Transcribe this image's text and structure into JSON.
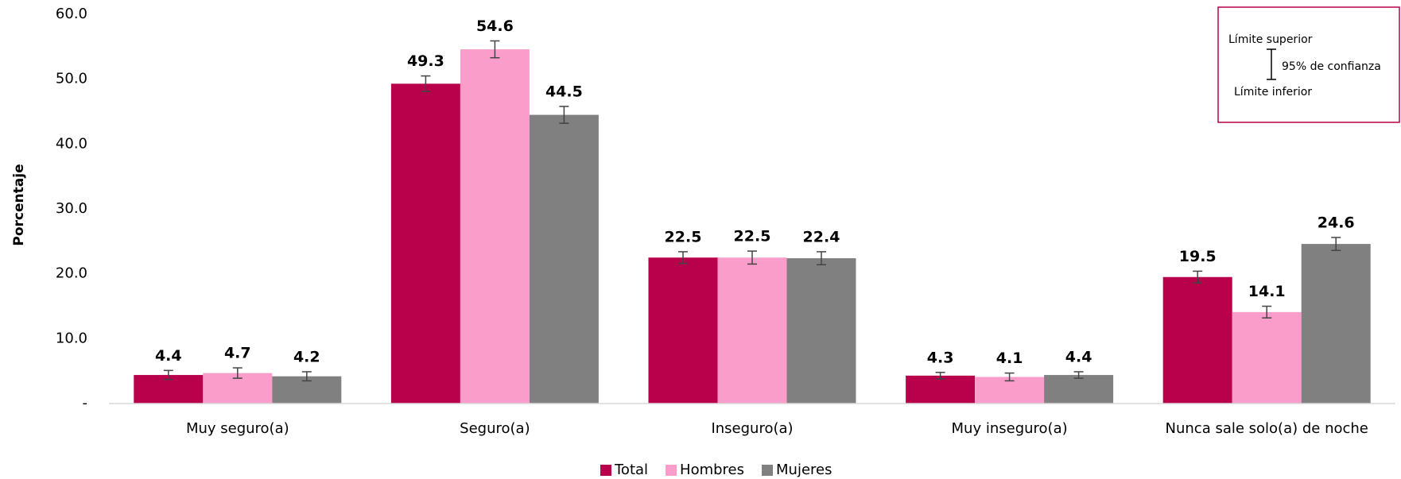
{
  "chart_data": {
    "type": "bar",
    "y_label": "Porcentaje",
    "categories": [
      "Muy seguro(a)",
      "Seguro(a)",
      "Inseguro(a)",
      "Muy inseguro(a)",
      "Nunca sale solo(a) de noche"
    ],
    "series": [
      {
        "name": "Total",
        "color": "#b8004b",
        "values": [
          4.4,
          49.3,
          22.5,
          4.3,
          19.5
        ],
        "errors": [
          0.7,
          1.2,
          0.9,
          0.5,
          0.9
        ]
      },
      {
        "name": "Hombres",
        "color": "#fa9dcb",
        "values": [
          4.7,
          54.6,
          22.5,
          4.1,
          14.1
        ],
        "errors": [
          0.8,
          1.3,
          1.0,
          0.6,
          0.9
        ]
      },
      {
        "name": "Mujeres",
        "color": "#808080",
        "values": [
          4.2,
          44.5,
          22.4,
          4.4,
          24.6
        ],
        "errors": [
          0.7,
          1.3,
          1.0,
          0.5,
          1.0
        ]
      }
    ],
    "ylim": [
      0,
      60
    ],
    "yticks": [
      {
        "value": 0,
        "label": "-"
      },
      {
        "value": 10,
        "label": "10.0"
      },
      {
        "value": 20,
        "label": "20.0"
      },
      {
        "value": 30,
        "label": "30.0"
      },
      {
        "value": 40,
        "label": "40.0"
      },
      {
        "value": 50,
        "label": "50.0"
      },
      {
        "value": 60,
        "label": "60.0"
      }
    ],
    "grid": false,
    "legend_position": "bottom",
    "confidence_legend": {
      "upper": "Límite superior",
      "middle": "95% de confianza",
      "lower": "Límite inferior"
    }
  }
}
